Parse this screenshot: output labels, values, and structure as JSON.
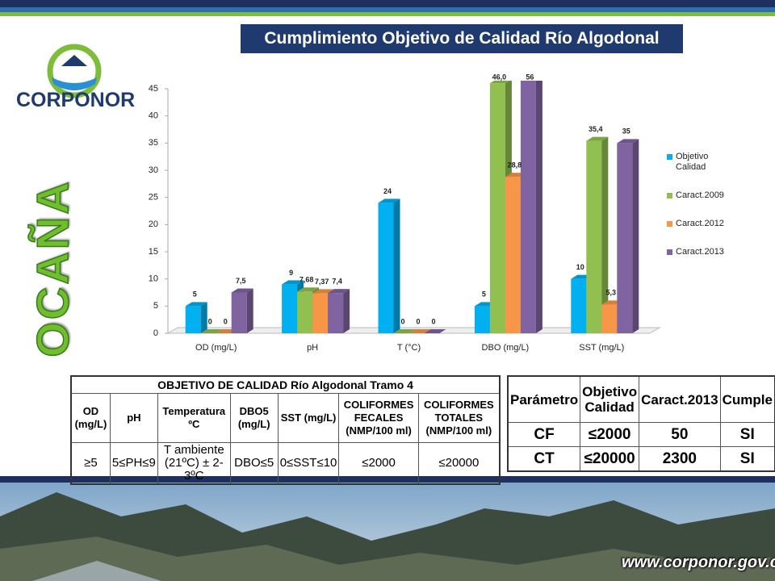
{
  "header": {
    "title": "Cumplimiento Objetivo de Calidad Río Algodonal",
    "logo_text": "CORPONOR",
    "city": "OCAÑA",
    "website": "www.corponor.gov.co"
  },
  "chart_data": {
    "type": "bar",
    "categories": [
      "OD (mg/L)",
      "pH",
      "T (°C)",
      "DBO (mg/L)",
      "SST (mg/L)"
    ],
    "series": [
      {
        "name": "Objetivo Calidad",
        "color": "#00b0f0",
        "values": [
          5,
          9,
          24,
          5,
          10
        ],
        "value_labels": [
          "5",
          "9",
          "24",
          "5",
          "10"
        ]
      },
      {
        "name": "Caract.2009",
        "color": "#92c050",
        "values": [
          0,
          7.68,
          0,
          46,
          35.4
        ],
        "value_labels": [
          "0",
          "7,68",
          "0",
          "46,0",
          "35,4"
        ]
      },
      {
        "name": "Caract.2012",
        "color": "#f79646",
        "values": [
          0,
          7.37,
          0,
          28.8,
          5.3
        ],
        "value_labels": [
          "0",
          "7,37",
          "0",
          "28,8",
          "5,3"
        ]
      },
      {
        "name": "Caract.2013",
        "color": "#8064a2",
        "values": [
          7.5,
          7.4,
          0,
          56,
          35
        ],
        "value_labels": [
          "7,5",
          "7,4",
          "0",
          "56",
          "35"
        ]
      }
    ],
    "ylim": [
      0,
      45
    ],
    "yticks": [
      0,
      5,
      10,
      15,
      20,
      25,
      30,
      35,
      40,
      45
    ],
    "legend": "right"
  },
  "quality_table": {
    "title": "OBJETIVO DE CALIDAD Río Algodonal Tramo 4",
    "headers": [
      "OD (mg/L)",
      "pH",
      "Temperatura ºC",
      "DBO5 (mg/L)",
      "SST (mg/L)",
      "COLIFORMES FECALES (NMP/100 ml)",
      "COLIFORMES TOTALES (NMP/100 ml)"
    ],
    "rows": [
      [
        "≥5",
        "5≤PH≤9",
        "T ambiente (21ºC) ± 2-3ºC",
        "DBO≤5",
        "0≤SST≤10",
        "≤2000",
        "≤20000"
      ]
    ]
  },
  "compliance_table": {
    "headers": [
      "Parámetro",
      "Objetivo Calidad",
      "Caract.2013",
      "Cumple"
    ],
    "rows": [
      [
        "CF",
        "≤2000",
        50,
        "SI"
      ],
      [
        "CT",
        "≤20000",
        2300,
        "SI"
      ]
    ]
  }
}
